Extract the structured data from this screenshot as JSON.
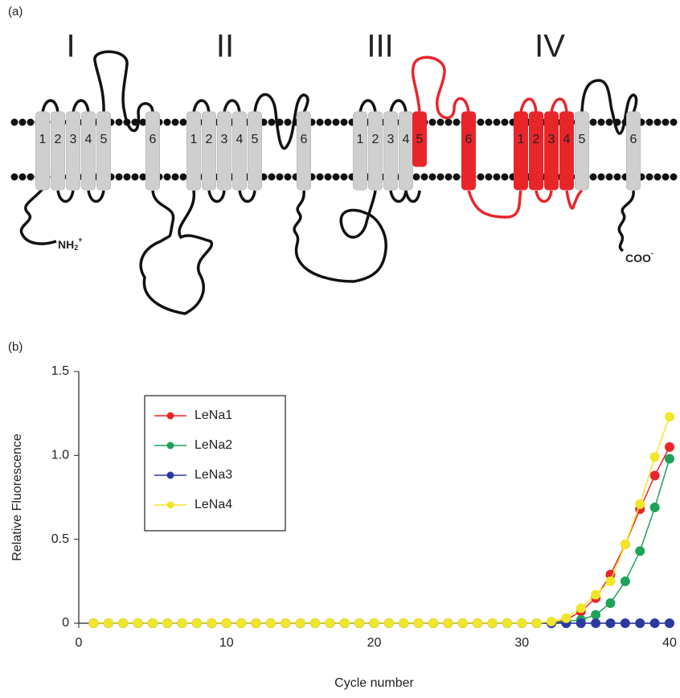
{
  "panel_a": {
    "label": "(a)",
    "domains": [
      {
        "name": "I",
        "segments": [
          "1",
          "2",
          "3",
          "4",
          "5",
          "6"
        ]
      },
      {
        "name": "II",
        "segments": [
          "1",
          "2",
          "3",
          "4",
          "5",
          "6"
        ]
      },
      {
        "name": "III",
        "segments": [
          "1",
          "2",
          "3",
          "4",
          "5",
          "6"
        ]
      },
      {
        "name": "IV",
        "segments": [
          "1",
          "2",
          "3",
          "4",
          "5",
          "6"
        ]
      }
    ],
    "n_terminus": {
      "base": "NH",
      "sub": "2",
      "sup": "+"
    },
    "c_terminus": {
      "base": "COO",
      "sup": "-"
    }
  },
  "panel_b": {
    "label": "(b)"
  },
  "chart_data": {
    "type": "line",
    "x_label": "Cycle number",
    "y_label": "Relative Fluorescence",
    "x": [
      1,
      2,
      3,
      4,
      5,
      6,
      7,
      8,
      9,
      10,
      11,
      12,
      13,
      14,
      15,
      16,
      17,
      18,
      19,
      20,
      21,
      22,
      23,
      24,
      25,
      26,
      27,
      28,
      29,
      30,
      31,
      32,
      33,
      34,
      35,
      36,
      37,
      38,
      39,
      40
    ],
    "series": [
      {
        "name": "LeNa1",
        "color": "#e8262a",
        "values": [
          0,
          0,
          0,
          0,
          0,
          0,
          0,
          0,
          0,
          0,
          0,
          0,
          0,
          0,
          0,
          0,
          0,
          0,
          0,
          0,
          0,
          0,
          0,
          0,
          0,
          0,
          0,
          0,
          0,
          0,
          0,
          0,
          0.02,
          0.07,
          0.15,
          0.29,
          0.47,
          0.68,
          0.88,
          1.05
        ]
      },
      {
        "name": "LeNa2",
        "color": "#1ea35a",
        "values": [
          0,
          0,
          0,
          0,
          0,
          0,
          0,
          0,
          0,
          0,
          0,
          0,
          0,
          0,
          0,
          0,
          0,
          0,
          0,
          0,
          0,
          0,
          0,
          0,
          0,
          0,
          0,
          0,
          0,
          0,
          0,
          0,
          0.01,
          0.02,
          0.05,
          0.12,
          0.25,
          0.43,
          0.69,
          0.98
        ]
      },
      {
        "name": "LeNa3",
        "color": "#2b3aa0",
        "values": [
          0,
          0,
          0,
          0,
          0,
          0,
          0,
          0,
          0,
          0,
          0,
          0,
          0,
          0,
          0,
          0,
          0,
          0,
          0,
          0,
          0,
          0,
          0,
          0,
          0,
          0,
          0,
          0,
          0,
          0,
          0,
          0,
          0,
          0,
          0,
          0,
          0,
          0,
          0,
          0
        ]
      },
      {
        "name": "LeNa4",
        "color": "#f2e62a",
        "values": [
          0,
          0,
          0,
          0,
          0,
          0,
          0,
          0,
          0,
          0,
          0,
          0,
          0,
          0,
          0,
          0,
          0,
          0,
          0,
          0,
          0,
          0,
          0,
          0,
          0,
          0,
          0,
          0,
          0,
          0,
          0,
          0.01,
          0.03,
          0.09,
          0.17,
          0.25,
          0.47,
          0.71,
          0.99,
          1.23
        ]
      }
    ],
    "xlim": [
      0,
      40
    ],
    "xticks": [
      0,
      10,
      20,
      30,
      40
    ],
    "ylim": [
      0,
      1.5
    ],
    "yticks": [
      0,
      0.5,
      {
        "value": 1,
        "label": "1.0"
      },
      1.5
    ],
    "grid": false,
    "legend": "upper left"
  }
}
